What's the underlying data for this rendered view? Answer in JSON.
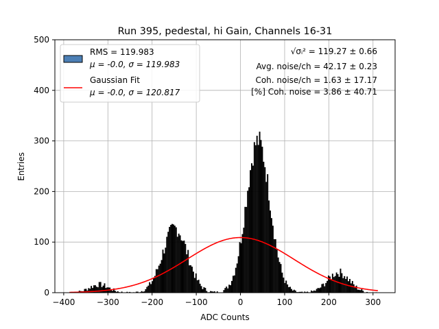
{
  "chart_data": {
    "type": "bar",
    "title": "Run 395, pedestal, hi Gain, Channels 16-31",
    "xlabel": "ADC Counts",
    "ylabel": "Entries",
    "xlim": [
      -420,
      350
    ],
    "ylim": [
      0,
      500
    ],
    "xticks": [
      -400,
      -300,
      -200,
      -100,
      0,
      100,
      200,
      300
    ],
    "xtick_labels": [
      "−400",
      "−300",
      "−200",
      "−100",
      "0",
      "100",
      "200",
      "300"
    ],
    "yticks": [
      0,
      100,
      200,
      300,
      400,
      500
    ],
    "ytick_labels": [
      "0",
      "100",
      "200",
      "300",
      "400",
      "500"
    ],
    "grid": true,
    "legend_position": "top-left",
    "legend": [
      {
        "line1": "RMS = 119.983",
        "line2": "μ = -0.0, σ = 119.983"
      },
      {
        "line1": "Gaussian Fit",
        "line2": "μ = -0.0, σ = 120.817"
      }
    ],
    "annotations": [
      "√σᵢ² = 119.27 ± 0.66",
      "Avg. noise/ch = 42.17 ± 0.23",
      "Coh. noise/ch = 1.63 ± 17.17",
      "[%] Coh. noise = 3.86 ± 40.71"
    ],
    "histogram": {
      "name": "RMS = 119.983",
      "bin_width": 3,
      "x_start": -387,
      "x_end": 312,
      "color": "#000000",
      "legend_color": "#4c7fb5",
      "components": [
        {
          "mu": -320,
          "sigma": 22,
          "amp": 16
        },
        {
          "mu": -148,
          "sigma": 28,
          "amp": 128
        },
        {
          "mu": 40,
          "sigma": 27,
          "amp": 300
        },
        {
          "mu": 222,
          "sigma": 25,
          "amp": 40
        }
      ]
    },
    "fit": {
      "name": "Gaussian Fit",
      "mu": 0.0,
      "sigma": 120.817,
      "amp": 109,
      "x_range": [
        -387,
        312
      ],
      "color": "#ff0000"
    }
  }
}
